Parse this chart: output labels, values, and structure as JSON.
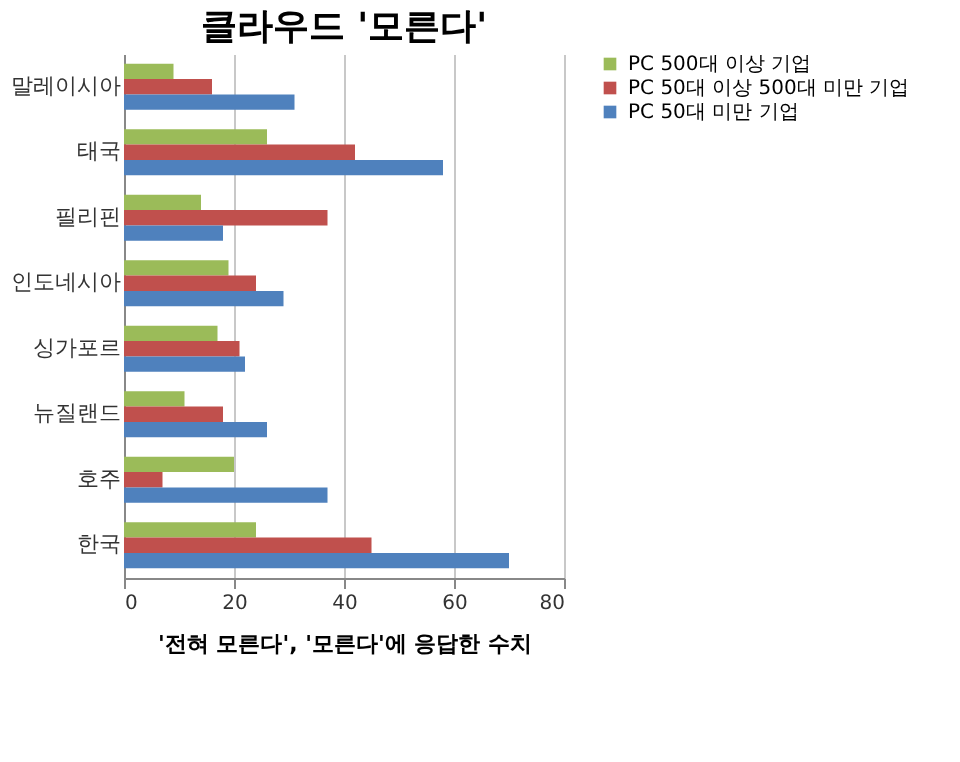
{
  "chart_data": {
    "type": "bar",
    "orientation": "horizontal",
    "title": "클라우드 '모른다'",
    "xlabel": "'전혀 모른다', '모른다'에 응답한 수치",
    "categories": [
      "말레이시아",
      "태국",
      "필리핀",
      "인도네시아",
      "싱가포르",
      "뉴질랜드",
      "호주",
      "한국"
    ],
    "series": [
      {
        "name": "PC 500대 이상 기업",
        "color": "#9bbb59",
        "values": [
          9,
          26,
          14,
          19,
          17,
          11,
          20,
          24
        ]
      },
      {
        "name": "PC 50대 이상 500대 미만 기업",
        "color": "#c0504d",
        "values": [
          16,
          42,
          37,
          24,
          21,
          18,
          7,
          45
        ]
      },
      {
        "name": "PC 50대 미만 기업",
        "color": "#4f81bd",
        "values": [
          31,
          58,
          18,
          29,
          22,
          26,
          37,
          70
        ]
      }
    ],
    "xlim": [
      0,
      80
    ],
    "xticks": [
      0,
      20,
      40,
      60,
      80
    ],
    "grid": "x",
    "legend": "right"
  }
}
